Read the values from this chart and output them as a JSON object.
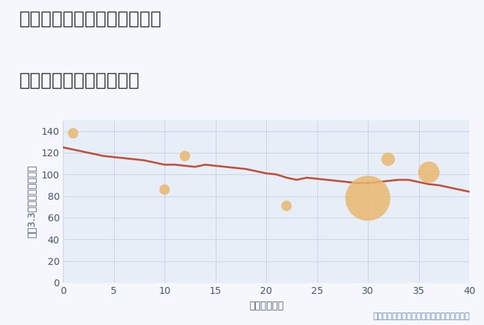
{
  "title_line1": "兵庫県西宮市上ヶ原三番町の",
  "title_line2": "築年数別中古戸建て価格",
  "xlabel": "築年数（年）",
  "ylabel": "坪（3.3㎡）単価（万円）",
  "annotation": "円の大きさは、取引のあった物件面積を示す",
  "background_color": "#f5f7fc",
  "plot_bg_color": "#e8eef8",
  "line_x": [
    0,
    1,
    2,
    3,
    4,
    5,
    6,
    7,
    8,
    9,
    10,
    11,
    12,
    13,
    14,
    15,
    16,
    17,
    18,
    19,
    20,
    21,
    22,
    23,
    24,
    25,
    26,
    27,
    28,
    29,
    30,
    31,
    32,
    33,
    34,
    35,
    36,
    37,
    38,
    39,
    40
  ],
  "line_y": [
    125,
    123,
    121,
    119,
    117,
    116,
    115,
    114,
    113,
    111,
    109,
    109,
    108,
    107,
    109,
    108,
    107,
    106,
    105,
    103,
    101,
    100,
    97,
    95,
    97,
    96,
    95,
    94,
    93,
    92,
    92,
    93,
    94,
    95,
    95,
    93,
    91,
    90,
    88,
    86,
    84
  ],
  "scatter_x": [
    1,
    10,
    12,
    22,
    30,
    32,
    36
  ],
  "scatter_y": [
    138,
    86,
    117,
    71,
    78,
    114,
    102
  ],
  "scatter_sizes": [
    120,
    120,
    120,
    120,
    2200,
    200,
    500
  ],
  "scatter_color": "#e8b870",
  "scatter_alpha": 0.85,
  "line_color": "#c0503a",
  "line_width": 2.0,
  "grid_color": "#c0cce0",
  "grid_alpha": 0.8,
  "xlim": [
    0,
    40
  ],
  "ylim": [
    0,
    150
  ],
  "xticks": [
    0,
    5,
    10,
    15,
    20,
    25,
    30,
    35,
    40
  ],
  "yticks": [
    0,
    20,
    40,
    60,
    80,
    100,
    120,
    140
  ],
  "title_color": "#333333",
  "title_fontsize": 19,
  "axis_label_color": "#445577",
  "tick_color": "#445577",
  "label_fontsize": 10,
  "tick_fontsize": 10,
  "annotation_fontsize": 8.5,
  "annotation_color": "#5080c0"
}
